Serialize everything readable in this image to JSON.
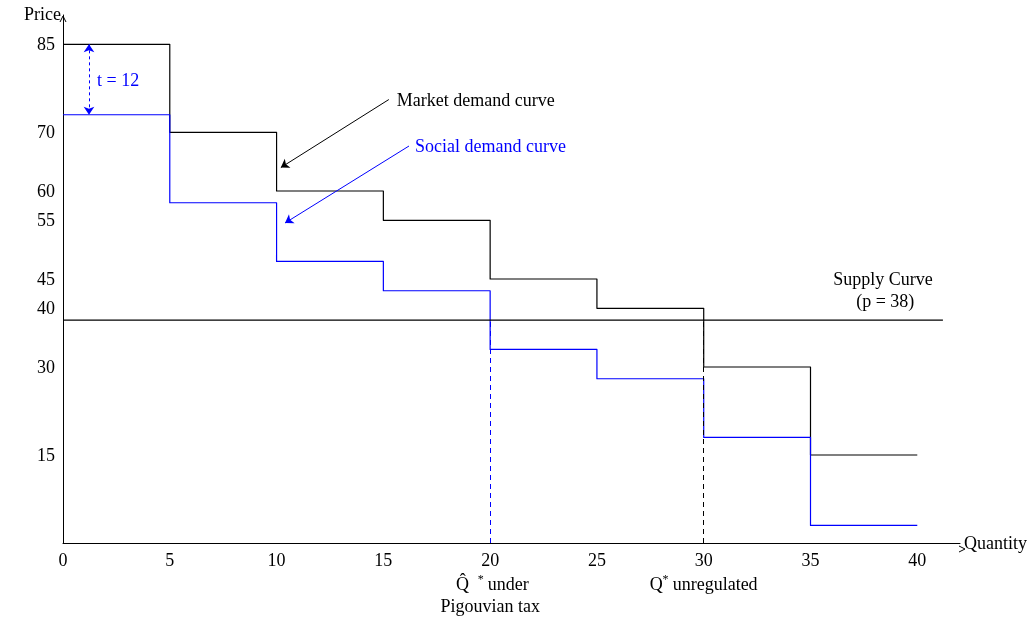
{
  "chart_data": {
    "type": "step",
    "xlabel": "Quantity",
    "ylabel": "Price",
    "xlim": [
      0,
      42
    ],
    "xticks": [
      0,
      5,
      10,
      15,
      20,
      25,
      30,
      35,
      40
    ],
    "ylim": [
      0,
      90
    ],
    "yticks": [
      15,
      30,
      40,
      45,
      55,
      60,
      70,
      85
    ],
    "grid": false,
    "marker": "none",
    "series": [
      {
        "x": [
          0,
          5,
          10,
          15,
          20,
          25,
          30,
          35,
          40
        ],
        "values": [
          85,
          70,
          60,
          55,
          45,
          40,
          30,
          15,
          15
        ],
        "color": "#000000"
      },
      {
        "x": [
          0,
          5,
          10,
          15,
          20,
          25,
          30,
          35,
          40
        ],
        "values": [
          73,
          58,
          48,
          43,
          33,
          28,
          18,
          3,
          3
        ],
        "color": "#0000ff"
      },
      {
        "type": "line",
        "x": [
          0,
          41.2
        ],
        "values": [
          38,
          38
        ],
        "color": "#000000"
      }
    ],
    "ref_lines": [
      {
        "axis": "x",
        "value": 20,
        "label": "Q̂$^{*}$ under Pigouvian tax",
        "color": "#0000ff",
        "line_style": "dashed"
      },
      {
        "axis": "x",
        "value": 30,
        "label": "Q$^{*}$ unregulated",
        "color": "#000000",
        "line_style": "dashed"
      }
    ],
    "annotations": [
      "t = 12",
      {
        "text": "Market demand curve",
        "x": 10.2,
        "y": 64
      },
      "Social demand curve",
      {
        "text": "Supply Curve (p = 38)",
        "x": 38.5,
        "y": 38
      }
    ]
  }
}
